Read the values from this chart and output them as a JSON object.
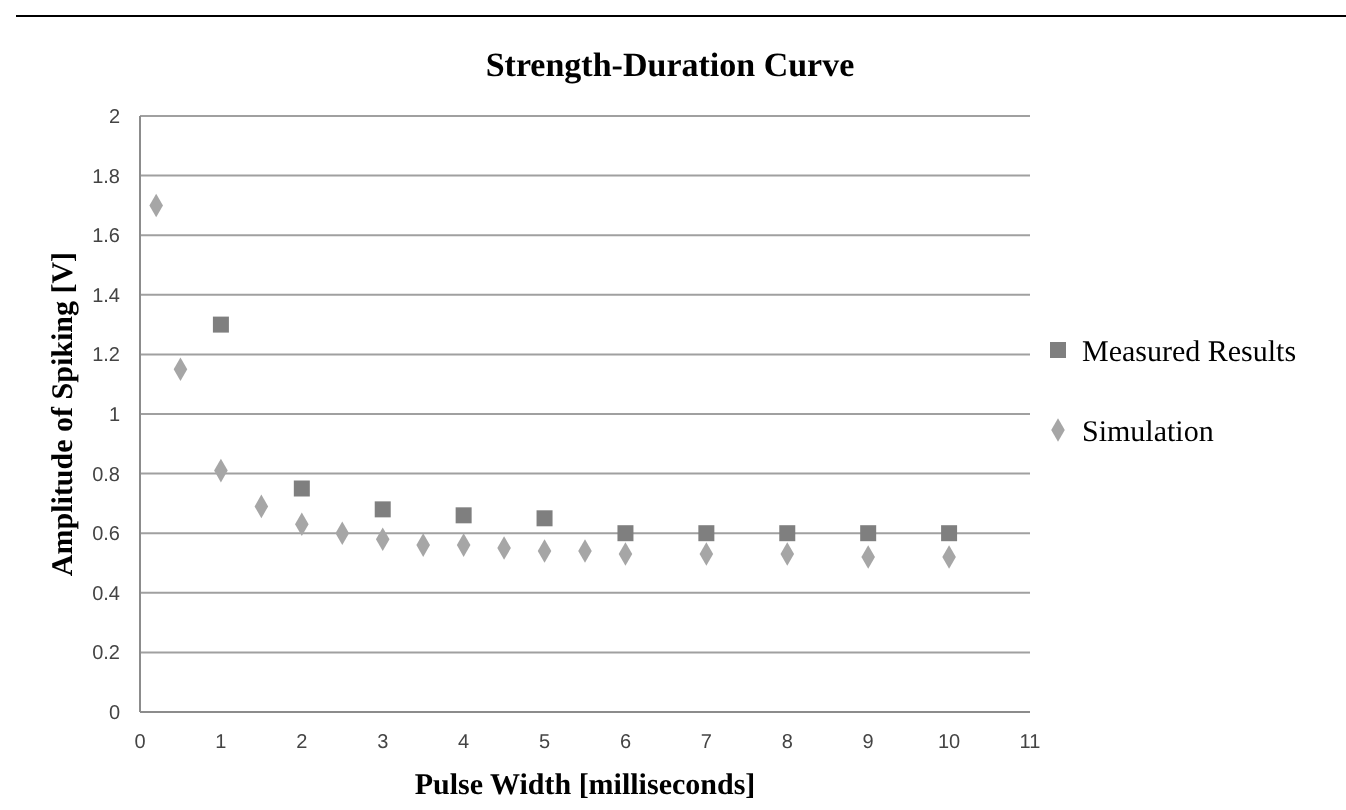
{
  "chart_data": {
    "type": "scatter",
    "title": "Strength-Duration Curve",
    "xlabel": "Pulse Width  [milliseconds]",
    "ylabel": "Amplitude  of Spiking  [V]",
    "xlim": [
      0,
      11
    ],
    "xticks": [
      0,
      1,
      2,
      3,
      4,
      5,
      6,
      7,
      8,
      9,
      10,
      11
    ],
    "ylim": [
      0,
      2
    ],
    "yticks": [
      0,
      0.2,
      0.4,
      0.6,
      0.8,
      1,
      1.2,
      1.4,
      1.6,
      1.8,
      2
    ],
    "grid": "y",
    "legend": "right",
    "series": [
      {
        "name": "Measured Results",
        "color": "#7f7f7f",
        "marker": "square",
        "x": [
          1,
          2,
          3,
          4,
          5,
          6,
          7,
          8,
          9,
          10
        ],
        "values": [
          1.3,
          0.75,
          0.68,
          0.66,
          0.65,
          0.6,
          0.6,
          0.6,
          0.6,
          0.6
        ]
      },
      {
        "name": "Simulation",
        "color": "#a6a6a6",
        "marker": "diamond",
        "x": [
          0.2,
          0.5,
          1,
          1.5,
          2,
          2.5,
          3,
          3.5,
          4,
          4.5,
          5,
          5.5,
          6,
          7,
          8,
          9,
          10
        ],
        "values": [
          1.7,
          1.15,
          0.81,
          0.69,
          0.63,
          0.6,
          0.58,
          0.56,
          0.56,
          0.55,
          0.54,
          0.54,
          0.53,
          0.53,
          0.53,
          0.52,
          0.52
        ]
      }
    ]
  }
}
